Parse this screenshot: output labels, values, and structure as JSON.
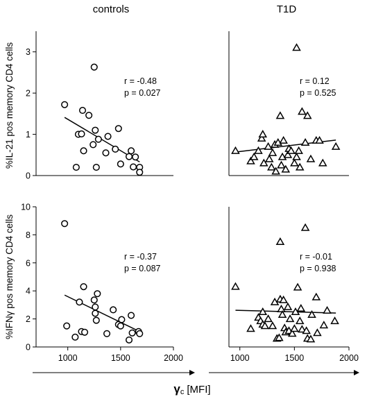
{
  "figure": {
    "col_titles": [
      "controls",
      "T1D"
    ],
    "row_ylabels": [
      "%IL-21 pos memory CD4 cells",
      "%IFNγ pos memory CD4 cells"
    ],
    "x_axis_symbol": "γ",
    "x_axis_subscript": "c",
    "x_axis_unit": "[MFI]"
  },
  "chart_data": [
    {
      "type": "scatter",
      "panel": "controls-IL21",
      "marker": "circle",
      "xlim": [
        700,
        2000
      ],
      "ylim": [
        0,
        3.5
      ],
      "xticks": [],
      "yticks": [
        0,
        1,
        2,
        3
      ],
      "stats": {
        "r": "r = -0.48",
        "p": "p =  0.027"
      },
      "fit": {
        "x": [
          970,
          1680
        ],
        "y": [
          1.41,
          0.33
        ]
      },
      "points": [
        [
          970,
          1.72
        ],
        [
          1080,
          0.2
        ],
        [
          1100,
          1.0
        ],
        [
          1130,
          1.01
        ],
        [
          1140,
          1.58
        ],
        [
          1150,
          0.6
        ],
        [
          1200,
          1.46
        ],
        [
          1240,
          0.75
        ],
        [
          1250,
          2.63
        ],
        [
          1260,
          1.1
        ],
        [
          1270,
          0.2
        ],
        [
          1290,
          0.88
        ],
        [
          1360,
          0.55
        ],
        [
          1380,
          0.95
        ],
        [
          1450,
          0.64
        ],
        [
          1480,
          1.14
        ],
        [
          1500,
          0.28
        ],
        [
          1580,
          0.46
        ],
        [
          1600,
          0.6
        ],
        [
          1620,
          0.21
        ],
        [
          1640,
          0.45
        ],
        [
          1680,
          0.2
        ],
        [
          1680,
          0.08
        ]
      ]
    },
    {
      "type": "scatter",
      "panel": "T1D-IL21",
      "marker": "triangle",
      "xlim": [
        900,
        2000
      ],
      "ylim": [
        0,
        3.5
      ],
      "xticks": [],
      "yticks": [],
      "stats": {
        "r": "r = 0.12",
        "p": "p =  0.525"
      },
      "fit": {
        "x": [
          960,
          1880
        ],
        "y": [
          0.57,
          0.86
        ]
      },
      "points": [
        [
          960,
          0.6
        ],
        [
          1100,
          0.35
        ],
        [
          1130,
          0.45
        ],
        [
          1170,
          0.6
        ],
        [
          1200,
          0.9
        ],
        [
          1210,
          1.0
        ],
        [
          1220,
          0.3
        ],
        [
          1260,
          0.7
        ],
        [
          1270,
          0.4
        ],
        [
          1290,
          0.2
        ],
        [
          1300,
          0.55
        ],
        [
          1320,
          0.75
        ],
        [
          1330,
          0.1
        ],
        [
          1350,
          0.8
        ],
        [
          1370,
          1.45
        ],
        [
          1380,
          0.25
        ],
        [
          1390,
          0.45
        ],
        [
          1400,
          0.85
        ],
        [
          1420,
          0.15
        ],
        [
          1440,
          0.5
        ],
        [
          1450,
          0.65
        ],
        [
          1470,
          0.6
        ],
        [
          1500,
          0.3
        ],
        [
          1520,
          3.1
        ],
        [
          1520,
          0.45
        ],
        [
          1540,
          0.6
        ],
        [
          1550,
          0.2
        ],
        [
          1570,
          1.55
        ],
        [
          1600,
          0.8
        ],
        [
          1620,
          1.45
        ],
        [
          1650,
          0.4
        ],
        [
          1700,
          0.85
        ],
        [
          1730,
          0.85
        ],
        [
          1760,
          0.3
        ],
        [
          1880,
          0.7
        ]
      ]
    },
    {
      "type": "scatter",
      "panel": "controls-IFNg",
      "marker": "circle",
      "xlim": [
        700,
        2000
      ],
      "ylim": [
        0,
        10
      ],
      "xticks": [
        1000,
        1500,
        2000
      ],
      "yticks": [
        0,
        2,
        4,
        6,
        8,
        10
      ],
      "stats": {
        "r": "r = -0.37",
        "p": "p =  0.087"
      },
      "fit": {
        "x": [
          970,
          1680
        ],
        "y": [
          3.7,
          1.1
        ]
      },
      "points": [
        [
          970,
          8.8
        ],
        [
          990,
          1.5
        ],
        [
          1070,
          0.7
        ],
        [
          1110,
          3.2
        ],
        [
          1130,
          1.1
        ],
        [
          1150,
          4.3
        ],
        [
          1160,
          1.05
        ],
        [
          1250,
          3.35
        ],
        [
          1260,
          2.85
        ],
        [
          1260,
          2.4
        ],
        [
          1270,
          1.9
        ],
        [
          1280,
          3.8
        ],
        [
          1370,
          0.95
        ],
        [
          1430,
          2.65
        ],
        [
          1480,
          1.6
        ],
        [
          1500,
          1.5
        ],
        [
          1510,
          1.95
        ],
        [
          1580,
          0.5
        ],
        [
          1600,
          2.25
        ],
        [
          1610,
          1.0
        ],
        [
          1670,
          1.1
        ],
        [
          1680,
          0.95
        ]
      ]
    },
    {
      "type": "scatter",
      "panel": "T1D-IFNg",
      "marker": "triangle",
      "xlim": [
        900,
        2000
      ],
      "ylim": [
        0,
        10
      ],
      "xticks": [
        1000,
        1500,
        2000
      ],
      "yticks": [],
      "stats": {
        "r": "r = -0.01",
        "p": "p =  0.938"
      },
      "fit": {
        "x": [
          960,
          1880
        ],
        "y": [
          2.62,
          2.42
        ]
      },
      "points": [
        [
          960,
          4.3
        ],
        [
          1100,
          1.3
        ],
        [
          1170,
          2.1
        ],
        [
          1190,
          1.85
        ],
        [
          1210,
          2.5
        ],
        [
          1210,
          1.6
        ],
        [
          1230,
          1.5
        ],
        [
          1260,
          2.0
        ],
        [
          1300,
          1.5
        ],
        [
          1320,
          3.2
        ],
        [
          1340,
          0.6
        ],
        [
          1360,
          0.65
        ],
        [
          1370,
          3.4
        ],
        [
          1370,
          7.5
        ],
        [
          1380,
          2.7
        ],
        [
          1390,
          2.3
        ],
        [
          1400,
          3.35
        ],
        [
          1410,
          1.35
        ],
        [
          1420,
          1.05
        ],
        [
          1440,
          2.85
        ],
        [
          1450,
          1.15
        ],
        [
          1460,
          2.0
        ],
        [
          1480,
          0.95
        ],
        [
          1500,
          1.3
        ],
        [
          1510,
          2.5
        ],
        [
          1530,
          4.25
        ],
        [
          1550,
          1.85
        ],
        [
          1560,
          2.75
        ],
        [
          1570,
          1.25
        ],
        [
          1600,
          8.5
        ],
        [
          1610,
          1.15
        ],
        [
          1620,
          0.6
        ],
        [
          1650,
          0.55
        ],
        [
          1660,
          2.3
        ],
        [
          1700,
          3.55
        ],
        [
          1710,
          1.0
        ],
        [
          1770,
          1.55
        ],
        [
          1800,
          2.6
        ],
        [
          1870,
          1.85
        ]
      ]
    }
  ]
}
